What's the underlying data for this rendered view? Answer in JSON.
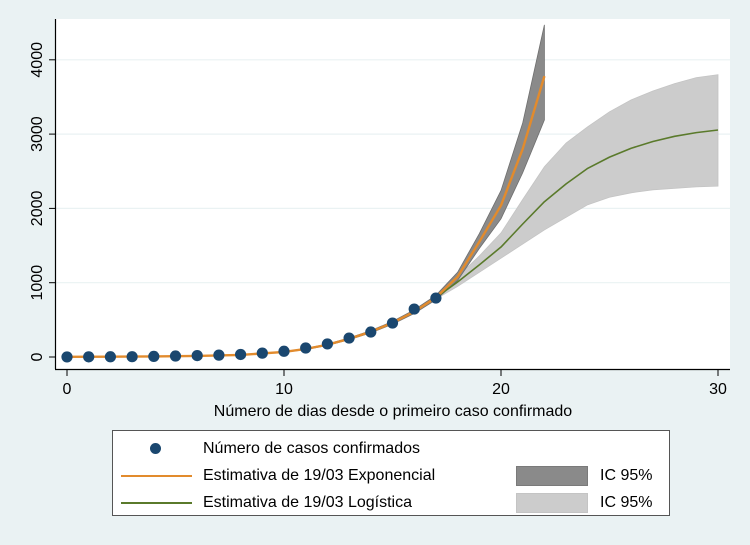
{
  "chart_data": {
    "type": "line",
    "title": "",
    "xlabel": "Número de dias desde o primeiro caso confirmado",
    "ylabel": "",
    "xlim": [
      0,
      30
    ],
    "ylim": [
      0,
      4500
    ],
    "xticks": [
      0,
      10,
      20,
      30
    ],
    "yticks": [
      0,
      1000,
      2000,
      3000,
      4000
    ],
    "grid": true,
    "legend_position": "bottom",
    "series": [
      {
        "name": "Número de casos confirmados",
        "kind": "scatter",
        "color": "#1a476f",
        "x": [
          0,
          1,
          2,
          3,
          4,
          5,
          6,
          7,
          8,
          9,
          10,
          11,
          12,
          13,
          14,
          15,
          16,
          17
        ],
        "values": [
          1,
          2,
          3,
          4,
          8,
          13,
          19,
          25,
          34,
          52,
          77,
          121,
          176,
          255,
          336,
          457,
          645,
          793
        ]
      },
      {
        "name": "Estimativa de 19/03 Exponencial",
        "kind": "line",
        "color": "#e28b2d",
        "x": [
          0,
          2,
          4,
          6,
          8,
          10,
          11,
          12,
          13,
          14,
          15,
          16,
          17,
          18,
          19,
          20,
          21,
          22
        ],
        "values": [
          2,
          4,
          8,
          14,
          28,
          68,
          108,
          165,
          245,
          340,
          460,
          610,
          800,
          1080,
          1550,
          2040,
          2800,
          3780
        ]
      },
      {
        "name": "IC 95% (Exponencial)",
        "kind": "band",
        "color": "#8a8a8a",
        "x": [
          0,
          2,
          4,
          6,
          8,
          10,
          11,
          12,
          13,
          14,
          15,
          16,
          17,
          18,
          19,
          20,
          21,
          22
        ],
        "lower": [
          1,
          3,
          7,
          12,
          25,
          62,
          100,
          155,
          232,
          325,
          440,
          585,
          770,
          1030,
          1460,
          1860,
          2480,
          3190
        ],
        "upper": [
          3,
          5,
          9,
          16,
          31,
          74,
          116,
          175,
          258,
          355,
          480,
          635,
          830,
          1140,
          1660,
          2240,
          3150,
          4470
        ]
      },
      {
        "name": "Estimativa de 19/03 Logística",
        "kind": "line",
        "color": "#5a7a2b",
        "x": [
          17,
          18,
          19,
          20,
          21,
          22,
          23,
          24,
          25,
          26,
          27,
          28,
          29,
          30
        ],
        "values": [
          800,
          1010,
          1240,
          1480,
          1790,
          2090,
          2330,
          2540,
          2690,
          2810,
          2900,
          2970,
          3020,
          3055
        ],
        "dashed": false
      },
      {
        "name": "IC 95% (Logística)",
        "kind": "band",
        "color": "#cccccc",
        "x": [
          17,
          18,
          19,
          20,
          21,
          22,
          23,
          24,
          25,
          26,
          27,
          28,
          29,
          30
        ],
        "lower": [
          780,
          950,
          1140,
          1330,
          1520,
          1710,
          1880,
          2050,
          2150,
          2210,
          2250,
          2270,
          2290,
          2300
        ],
        "upper": [
          820,
          1080,
          1360,
          1670,
          2120,
          2560,
          2880,
          3100,
          3300,
          3460,
          3580,
          3680,
          3760,
          3800
        ]
      }
    ]
  },
  "axes": {
    "x_tick_labels": [
      "0",
      "10",
      "20",
      "30"
    ],
    "y_tick_labels": [
      "0",
      "1000",
      "2000",
      "3000",
      "4000"
    ],
    "x_title": "Número de dias desde o primeiro caso confirmado"
  },
  "legend": {
    "items": [
      {
        "label": "Número de casos confirmados",
        "symbol": "dot",
        "color": "#1a476f"
      },
      {
        "label": "Estimativa de 19/03 Exponencial",
        "symbol": "line",
        "color": "#e28b2d",
        "ci_label": "IC 95%",
        "ci_color": "#8a8a8a"
      },
      {
        "label": "Estimativa de 19/03 Logística",
        "symbol": "line",
        "color": "#5a7a2b",
        "ci_label": "IC 95%",
        "ci_color": "#cccccc"
      }
    ]
  },
  "colors": {
    "background": "#eaf2f3",
    "plot_background": "#ffffff",
    "grid": "#eaf2f3"
  }
}
